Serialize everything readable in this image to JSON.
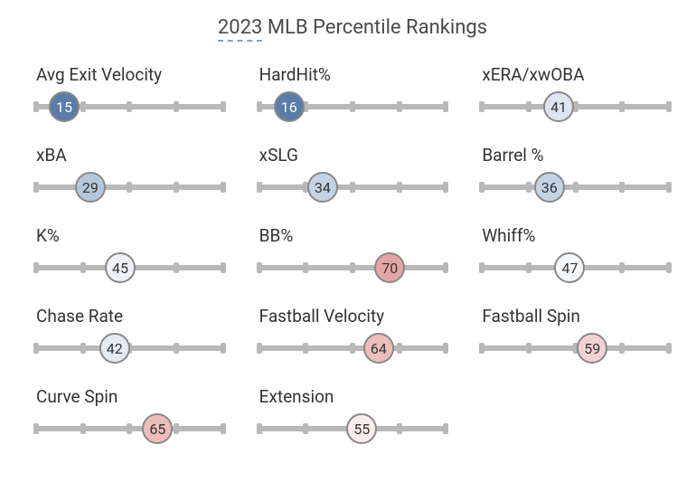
{
  "title_year": "2023",
  "title_rest": " MLB Percentile Rankings",
  "title_fontsize": 22,
  "label_fontsize": 19,
  "value_fontsize": 16,
  "track_color": "#b8b8b8",
  "border_color": "#888888",
  "background_color": "#ffffff",
  "bubble_diameter": 34,
  "columns": 3,
  "tick_positions": [
    0,
    25,
    50,
    75,
    100
  ],
  "metrics": [
    {
      "label": "Avg Exit Velocity",
      "value": 15,
      "fill": "#5a7ca8",
      "text": "#ffffff"
    },
    {
      "label": "HardHit%",
      "value": 16,
      "fill": "#5a7ca8",
      "text": "#ffffff"
    },
    {
      "label": "xERA/xwOBA",
      "value": 41,
      "fill": "#dde6f0",
      "text": "#333333"
    },
    {
      "label": "xBA",
      "value": 29,
      "fill": "#b4c8dd",
      "text": "#333333"
    },
    {
      "label": "xSLG",
      "value": 34,
      "fill": "#c3d3e4",
      "text": "#333333"
    },
    {
      "label": "Barrel %",
      "value": 36,
      "fill": "#c3d3e4",
      "text": "#333333"
    },
    {
      "label": "K%",
      "value": 45,
      "fill": "#eef2f7",
      "text": "#333333"
    },
    {
      "label": "BB%",
      "value": 70,
      "fill": "#e2a6a2",
      "text": "#333333"
    },
    {
      "label": "Whiff%",
      "value": 47,
      "fill": "#f7f8fa",
      "text": "#333333"
    },
    {
      "label": "Chase Rate",
      "value": 42,
      "fill": "#e4ebf3",
      "text": "#333333"
    },
    {
      "label": "Fastball Velocity",
      "value": 64,
      "fill": "#edbfbc",
      "text": "#333333"
    },
    {
      "label": "Fastball Spin",
      "value": 59,
      "fill": "#f3d3d1",
      "text": "#333333"
    },
    {
      "label": "Curve Spin",
      "value": 65,
      "fill": "#ecbdba",
      "text": "#333333"
    },
    {
      "label": "Extension",
      "value": 55,
      "fill": "#f9edec",
      "text": "#333333"
    }
  ]
}
